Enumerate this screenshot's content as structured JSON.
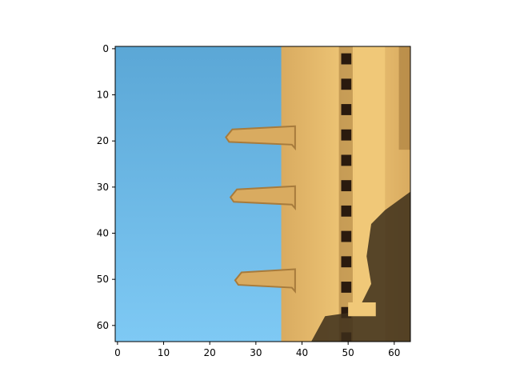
{
  "chart_data": {
    "type": "heatmap",
    "title": "",
    "xlabel": "",
    "ylabel": "",
    "xlim": [
      -0.5,
      63.5
    ],
    "ylim": [
      63.5,
      -0.5
    ],
    "y_axis_inverted": true,
    "grid": false,
    "image_size": [
      64,
      64
    ],
    "xticks": [
      0,
      10,
      20,
      30,
      40,
      50,
      60
    ],
    "yticks": [
      0,
      10,
      20,
      30,
      40,
      50,
      60
    ],
    "content": "pixelated photo: blue sky on the left, sandstone Gothic tower with three protruding gargoyles on the right",
    "colors": {
      "sky_top": "#5ba7d6",
      "sky_bottom": "#7ec9f4",
      "stone_light": "#f0c878",
      "stone_mid": "#d9ab60",
      "stone_dark": "#a77b3c",
      "shadow": "#3c2e1a",
      "hole": "#2a1a0e"
    },
    "features": {
      "sky_edge_x": 35.5,
      "gargoyles_y": [
        19,
        32,
        50
      ],
      "dark_column_x": 50,
      "shadow_region": "lower-right"
    }
  }
}
